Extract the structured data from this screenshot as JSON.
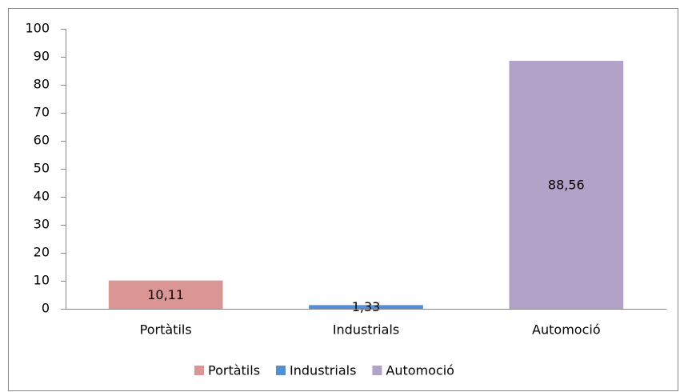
{
  "chart_data": {
    "type": "bar",
    "categories": [
      "Portàtils",
      "Industrials",
      "Automoció"
    ],
    "values": [
      10.11,
      1.33,
      88.56
    ],
    "value_labels": [
      "10,11",
      "1,33",
      "88,56"
    ],
    "colors": [
      "#d99694",
      "#558ed5",
      "#b3a2c7"
    ],
    "ylim": [
      0,
      100
    ],
    "yticks": [
      0,
      10,
      20,
      30,
      40,
      50,
      60,
      70,
      80,
      90,
      100
    ],
    "grid": false,
    "legend": "bottom"
  }
}
